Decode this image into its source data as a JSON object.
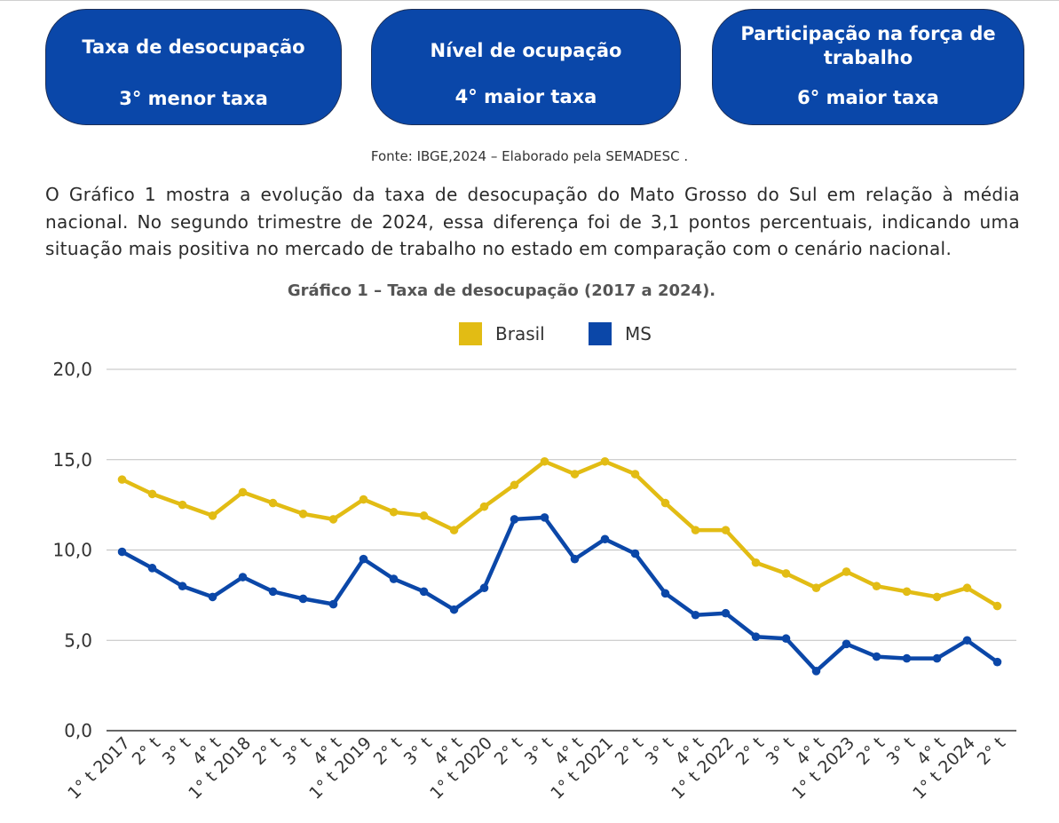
{
  "cards": [
    {
      "title": "Taxa de desocupação",
      "value": "3° menor taxa"
    },
    {
      "title": "Nível de ocupação",
      "value": "4°  maior taxa"
    },
    {
      "title": "Participação na força de trabalho",
      "value": "6° maior taxa"
    }
  ],
  "colors": {
    "card_bg": "#0a47a9",
    "brasil": "#e2bc14",
    "ms": "#0b47a8",
    "grid": "#bfbfbf"
  },
  "source_note": "Fonte: IBGE,2024  – Elaborado pela SEMADESC .",
  "paragraph": "O Gráfico 1 mostra a evolução da taxa de desocupação do Mato Grosso do Sul em relação à média nacional. No segundo trimestre de 2024, essa diferença foi de 3,1 pontos percentuais, indicando uma situação mais positiva no mercado de trabalho no estado em comparação com o cenário nacional.",
  "chart_data": {
    "type": "line",
    "title": "Gráfico 1 – Taxa de desocupação (2017 a 2024).",
    "xlabel": "",
    "ylabel": "",
    "ylim": [
      0,
      20
    ],
    "yticks": [
      "0,0",
      "5,0",
      "10,0",
      "15,0",
      "20,0"
    ],
    "grid": true,
    "legend_position": "top-center",
    "categories": [
      "1° t 2017",
      "2° t",
      "3° t",
      "4° t",
      "1° t 2018",
      "2° t",
      "3° t",
      "4° t",
      "1° t 2019",
      "2° t",
      "3° t",
      "4° t",
      "1° t 2020",
      "2° t",
      "3° t",
      "4° t",
      "1° t 2021",
      "2° t",
      "3° t",
      "4° t",
      "1° t 2022",
      "2° t",
      "3° t",
      "4° t",
      "1° t 2023",
      "2° t",
      "3° t",
      "4° t",
      "1° t 2024",
      "2° t"
    ],
    "series": [
      {
        "name": "Brasil",
        "color": "#e2bc14",
        "values": [
          13.9,
          13.1,
          12.5,
          11.9,
          13.2,
          12.6,
          12.0,
          11.7,
          12.8,
          12.1,
          11.9,
          11.1,
          12.4,
          13.6,
          14.9,
          14.2,
          14.9,
          14.2,
          12.6,
          11.1,
          11.1,
          9.3,
          8.7,
          7.9,
          8.8,
          8.0,
          7.7,
          7.4,
          7.9,
          6.9
        ]
      },
      {
        "name": "MS",
        "color": "#0b47a8",
        "values": [
          9.9,
          9.0,
          8.0,
          7.4,
          8.5,
          7.7,
          7.3,
          7.0,
          9.5,
          8.4,
          7.7,
          6.7,
          7.9,
          11.7,
          11.8,
          9.5,
          10.6,
          9.8,
          7.6,
          6.4,
          6.5,
          5.2,
          5.1,
          3.3,
          4.8,
          4.1,
          4.0,
          4.0,
          5.0,
          3.8
        ]
      }
    ]
  }
}
